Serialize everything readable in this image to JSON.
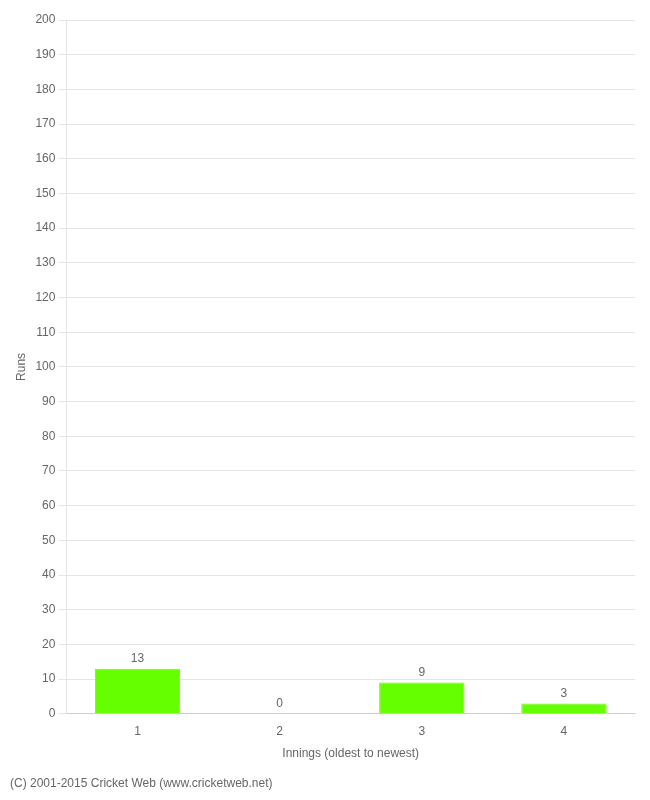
{
  "chart_data": {
    "type": "bar",
    "categories": [
      "1",
      "2",
      "3",
      "4"
    ],
    "values": [
      13,
      0,
      9,
      3
    ],
    "color": "#66ff00",
    "xlabel": "Innings (oldest to newest)",
    "ylabel": "Runs",
    "ylim": [
      0,
      200
    ],
    "yticks": [
      0,
      10,
      20,
      30,
      40,
      50,
      60,
      70,
      80,
      90,
      100,
      110,
      120,
      130,
      140,
      150,
      160,
      170,
      180,
      190,
      200
    ],
    "grid": true,
    "data_labels": true,
    "annotations": [
      "(C) 2001-2015 Cricket Web (www.cricketweb.net)"
    ]
  }
}
